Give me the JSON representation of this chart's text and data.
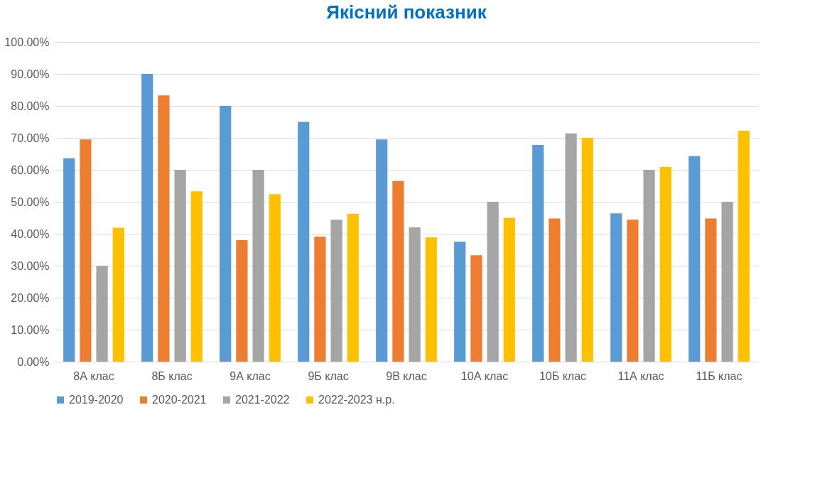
{
  "chart_data": {
    "type": "bar",
    "title": "Якісний показник",
    "categories": [
      "8А клас",
      "8Б клас",
      "9А клас",
      "9Б клас",
      "9В клас",
      "10А клас",
      "10Б клас",
      "11А клас",
      "11Б клас"
    ],
    "series": [
      {
        "name": "2019-2020",
        "color": "#5b9bd5",
        "values": [
          63.6,
          90,
          80,
          75,
          69.5,
          37.5,
          67.8,
          46.4,
          64.3
        ]
      },
      {
        "name": "2020-2021",
        "color": "#ed7d31",
        "values": [
          69.5,
          83.3,
          38,
          39.1,
          56.5,
          33.3,
          44.8,
          44.4,
          44.8
        ]
      },
      {
        "name": "2021-2022",
        "color": "#a5a5a5",
        "values": [
          30,
          60,
          60,
          44.4,
          42,
          50,
          71.4,
          60,
          50
        ]
      },
      {
        "name": "2022-2023 н.р.",
        "color": "#ffc000",
        "values": [
          41.9,
          53.3,
          52.4,
          46.2,
          38.9,
          45,
          70,
          60.9,
          72.2
        ]
      }
    ],
    "ylim": [
      0,
      100
    ],
    "yticks": [
      {
        "value": 0,
        "label": "0.00%"
      },
      {
        "value": 10,
        "label": "10.00%"
      },
      {
        "value": 20,
        "label": "20.00%"
      },
      {
        "value": 30,
        "label": "30.00%"
      },
      {
        "value": 40,
        "label": "40.00%"
      },
      {
        "value": 50,
        "label": "50.00%"
      },
      {
        "value": 60,
        "label": "60.00%"
      },
      {
        "value": 70,
        "label": "70.00%"
      },
      {
        "value": 80,
        "label": "80.00%"
      },
      {
        "value": 90,
        "label": "90.00%"
      },
      {
        "value": 100,
        "label": "100.00%"
      }
    ],
    "grid": "y",
    "legend": "bottom"
  }
}
